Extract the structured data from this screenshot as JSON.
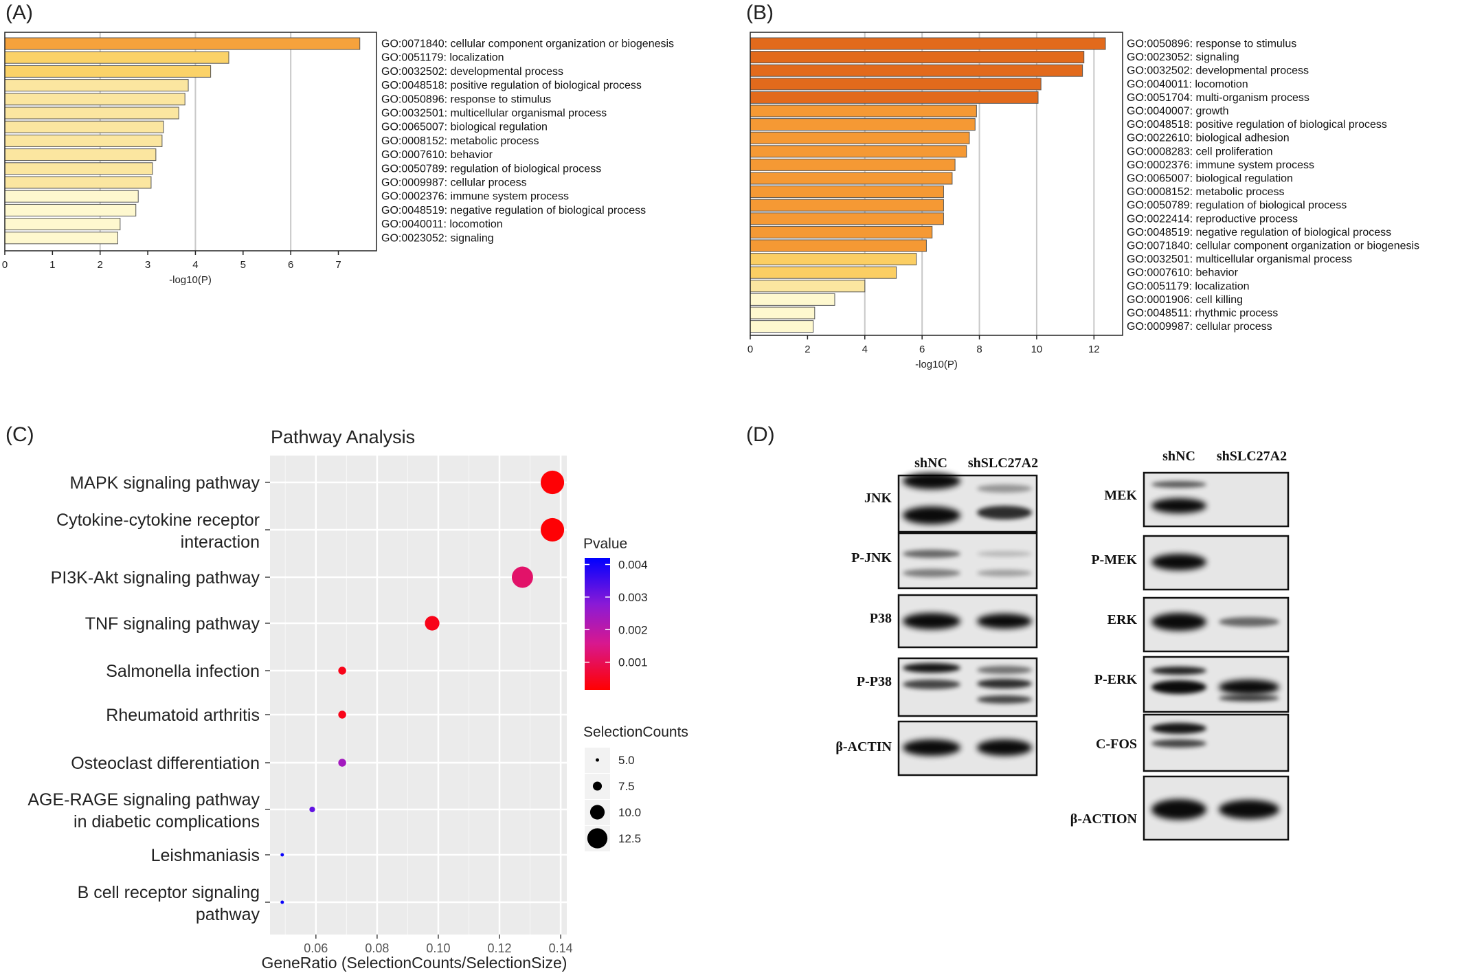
{
  "chart_data": [
    {
      "panel": "(A)",
      "type": "bar",
      "orientation": "horizontal",
      "xlabel": "-log10(P)",
      "xlim": [
        0,
        7.8
      ],
      "xticks": [
        0,
        1,
        2,
        3,
        4,
        5,
        6,
        7
      ],
      "grid": "vertical lines at ticks 2, 4, 6",
      "categories": [
        "GO:0071840: cellular component organization or biogenesis",
        "GO:0051179: localization",
        "GO:0032502: developmental process",
        "GO:0048518: positive regulation of biological process",
        "GO:0050896: response to stimulus",
        "GO:0032501: multicellular organismal process",
        "GO:0065007: biological regulation",
        "GO:0008152: metabolic process",
        "GO:0007610: behavior",
        "GO:0050789: regulation of biological process",
        "GO:0009987: cellular process",
        "GO:0002376: immune system process",
        "GO:0048519: negative regulation of biological process",
        "GO:0040011: locomotion",
        "GO:0023052: signaling"
      ],
      "values": [
        7.45,
        4.7,
        4.32,
        3.85,
        3.78,
        3.65,
        3.33,
        3.3,
        3.17,
        3.1,
        3.07,
        2.8,
        2.75,
        2.42,
        2.37
      ],
      "colors": [
        "#f6a23c",
        "#fbd268",
        "#fbd268",
        "#fbe6a0",
        "#fbe6a0",
        "#fbe6a0",
        "#fbe6a0",
        "#fbe6a0",
        "#fbe6a0",
        "#fbe6a0",
        "#fbe6a0",
        "#fef8cf",
        "#fef8cf",
        "#fef8cf",
        "#fef8cf"
      ]
    },
    {
      "panel": "(B)",
      "type": "bar",
      "orientation": "horizontal",
      "xlabel": "-log10(P)",
      "xlim": [
        0,
        13.0
      ],
      "xticks": [
        0,
        2,
        4,
        6,
        8,
        10,
        12
      ],
      "grid": "vertical lines at ticks 4, 6, 8, 10, 12",
      "categories": [
        "GO:0050896: response to stimulus",
        "GO:0023052: signaling",
        "GO:0032502: developmental process",
        "GO:0040011: locomotion",
        "GO:0051704: multi-organism process",
        "GO:0040007: growth",
        "GO:0048518: positive regulation of biological process",
        "GO:0022610: biological adhesion",
        "GO:0008283: cell proliferation",
        "GO:0002376: immune system process",
        "GO:0065007: biological regulation",
        "GO:0008152: metabolic process",
        "GO:0050789: regulation of biological process",
        "GO:0022414: reproductive process",
        "GO:0048519: negative regulation of biological process",
        "GO:0071840: cellular component organization or biogenesis",
        "GO:0032501: multicellular organismal process",
        "GO:0007610: behavior",
        "GO:0051179: localization",
        "GO:0001906: cell killing",
        "GO:0048511: rhythmic process",
        "GO:0009987: cellular process"
      ],
      "values": [
        12.4,
        11.65,
        11.6,
        10.15,
        10.05,
        7.9,
        7.85,
        7.65,
        7.55,
        7.15,
        7.05,
        6.75,
        6.75,
        6.75,
        6.35,
        6.15,
        5.8,
        5.1,
        4.0,
        2.95,
        2.25,
        2.2
      ],
      "colors": [
        "#e26a1c",
        "#e26a1c",
        "#e26a1c",
        "#e26a1c",
        "#e26a1c",
        "#f59934",
        "#f59934",
        "#f59934",
        "#f59934",
        "#f59934",
        "#f59934",
        "#f59934",
        "#f59934",
        "#f59934",
        "#f59934",
        "#f59934",
        "#fbce63",
        "#fbce63",
        "#fbe6a0",
        "#fef8cf",
        "#fef8cf",
        "#fef8cf"
      ]
    },
    {
      "panel": "(C)",
      "type": "scatter",
      "title": "Pathway Analysis",
      "xlabel": "GeneRatio (SelectionCounts/SelectionSize)",
      "xlim": [
        0.045,
        0.142
      ],
      "xticks": [
        0.06,
        0.08,
        0.1,
        0.12,
        0.14
      ],
      "xtick_labels": [
        "0.06",
        "0.08",
        "0.10",
        "0.12",
        "0.14"
      ],
      "categories": [
        "MAPK signaling pathway",
        "Cytokine-cytokine receptor interaction",
        "PI3K-Akt signaling pathway",
        "TNF signaling pathway",
        "Salmonella infection",
        "Rheumatoid arthritis",
        "Osteoclast differentiation",
        "AGE-RAGE signaling pathway in diabetic complications",
        "Leishmaniasis",
        "B cell receptor signaling pathway"
      ],
      "category_lines": [
        [
          "MAPK signaling pathway"
        ],
        [
          "Cytokine-cytokine receptor",
          "interaction"
        ],
        [
          "PI3K-Akt signaling pathway"
        ],
        [
          "TNF signaling pathway"
        ],
        [
          "Salmonella infection"
        ],
        [
          "Rheumatoid arthritis"
        ],
        [
          "Osteoclast differentiation"
        ],
        [
          "AGE-RAGE signaling pathway",
          "in diabetic complications"
        ],
        [
          "Leishmaniasis"
        ],
        [
          "B cell receptor signaling",
          "pathway"
        ]
      ],
      "x": [
        0.1373,
        0.1373,
        0.1275,
        0.098,
        0.0686,
        0.0686,
        0.0686,
        0.0588,
        0.049,
        0.049
      ],
      "size": [
        14,
        14,
        13,
        10,
        7,
        7,
        7,
        6,
        5,
        5
      ],
      "pvalue": [
        0.0002,
        0.0002,
        0.0012,
        0.0004,
        0.0004,
        0.0004,
        0.0024,
        0.0032,
        0.0041,
        0.0041
      ],
      "legend": {
        "color_title": "Pvalue",
        "color_ticks": [
          "0.004",
          "0.003",
          "0.002",
          "0.001"
        ],
        "color_tick_values": [
          0.004,
          0.003,
          0.002,
          0.001
        ],
        "color_range": [
          0.00015,
          0.0042
        ],
        "color_low": "#ff0000",
        "color_high": "#0000ff",
        "size_title": "SelectionCounts",
        "size_ticks": [
          "5.0",
          "7.5",
          "10.0",
          "12.5"
        ],
        "size_tick_values": [
          5.0,
          7.5,
          10.0,
          12.5
        ]
      },
      "panel_background": "#ebebeb",
      "grid": "white major and minor grid lines"
    }
  ],
  "panel_labels": {
    "a": "(A)",
    "b": "(B)",
    "c": "(C)",
    "d": "(D)"
  },
  "western_blot": {
    "left": {
      "headers": [
        "shNC",
        "shSLC27A2"
      ],
      "rows": [
        "JNK",
        "P-JNK",
        "P38",
        "P-P38",
        "β-ACTIN"
      ]
    },
    "right": {
      "headers": [
        "shNC",
        "shSLC27A2"
      ],
      "rows": [
        "MEK",
        "P-MEK",
        "ERK",
        "P-ERK",
        "C-FOS",
        "β-ACTION"
      ]
    }
  }
}
